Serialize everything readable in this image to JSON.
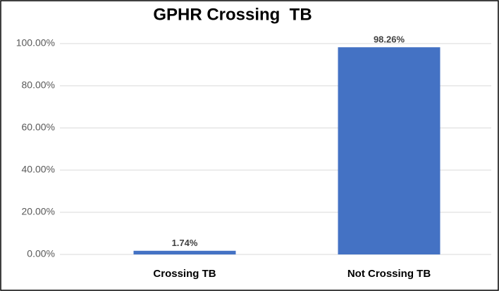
{
  "chart_data": {
    "type": "bar",
    "title": "GPHR Crossing  TB",
    "categories": [
      "Crossing TB",
      "Not Crossing TB"
    ],
    "values": [
      1.74,
      98.26
    ],
    "value_labels": [
      "1.74%",
      "98.26%"
    ],
    "color": "#4472c4",
    "ylim": [
      0,
      100
    ],
    "yticks": [
      {
        "value": 0,
        "label": "0.00%"
      },
      {
        "value": 20,
        "label": "20.00%"
      },
      {
        "value": 40,
        "label": "40.00%"
      },
      {
        "value": 60,
        "label": "60.00%"
      },
      {
        "value": 80,
        "label": "80.00%"
      },
      {
        "value": 100,
        "label": "100.00%"
      }
    ],
    "grid": true
  }
}
